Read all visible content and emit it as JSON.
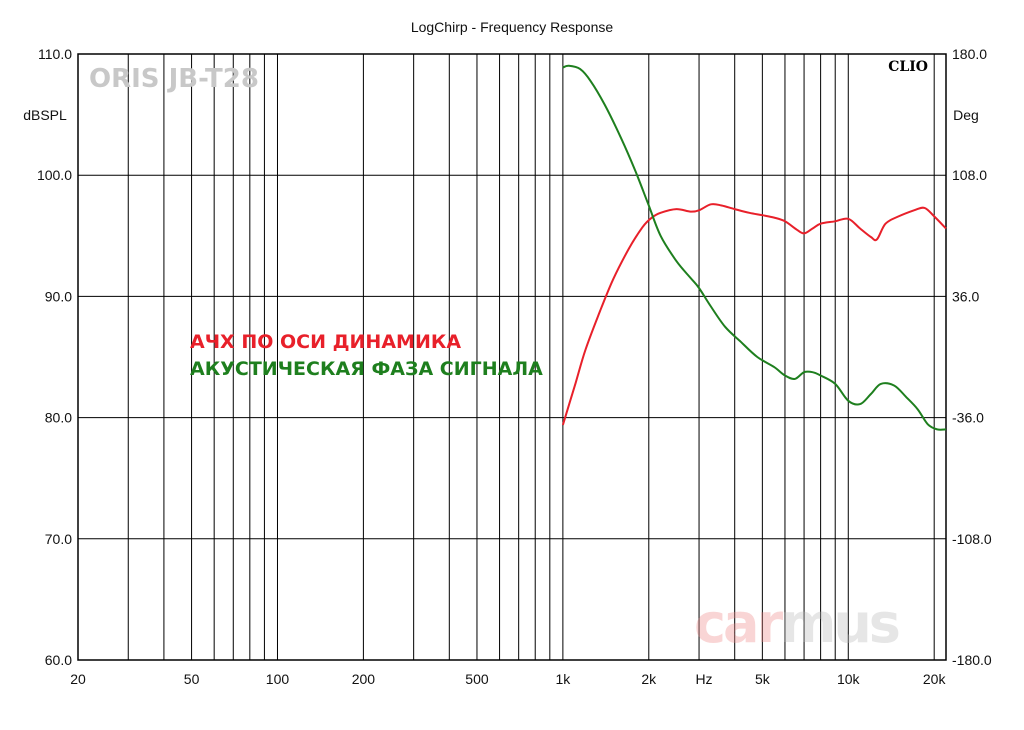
{
  "chart_data": {
    "type": "line",
    "title": "LogChirp - Frequency Response",
    "watermark_left": "ORIS JB-T28",
    "brand_right": "CLIO",
    "logo": "carmus",
    "xlabel": "Hz",
    "ylabel_left": "dBSPL",
    "ylabel_right": "Deg",
    "x_scale": "log",
    "xlim": [
      20,
      22000
    ],
    "ylim_left": [
      60,
      110
    ],
    "ylim_right": [
      -180,
      180
    ],
    "grid": true,
    "x_ticks": [
      {
        "value": 20,
        "label": "20"
      },
      {
        "value": 50,
        "label": "50"
      },
      {
        "value": 100,
        "label": "100"
      },
      {
        "value": 200,
        "label": "200"
      },
      {
        "value": 500,
        "label": "500"
      },
      {
        "value": 1000,
        "label": "1k"
      },
      {
        "value": 2000,
        "label": "2k"
      },
      {
        "value": 5000,
        "label": "5k"
      },
      {
        "value": 10000,
        "label": "10k"
      },
      {
        "value": 20000,
        "label": "20k"
      }
    ],
    "y_ticks_left": [
      "110.0",
      "100.0",
      "90.0",
      "80.0",
      "70.0",
      "60.0"
    ],
    "y_ticks_right": [
      "180.0",
      "108.0",
      "36.0",
      "-36.0",
      "-108.0",
      "-180.0"
    ],
    "legend": [
      "АЧХ ПО ОСИ ДИНАМИКА",
      "АКУСТИЧЕСКАЯ ФАЗА СИГНАЛА"
    ],
    "series": [
      {
        "color": "#e8202a",
        "axis": "left",
        "x": [
          1000,
          1100,
          1200,
          1350,
          1500,
          1700,
          1900,
          2050,
          2200,
          2500,
          2800,
          3000,
          3300,
          3600,
          4000,
          4500,
          5000,
          5500,
          6000,
          6600,
          7000,
          7500,
          8000,
          9000,
          10000,
          11000,
          12000,
          12600,
          13500,
          15000,
          17000,
          18500,
          20000,
          22000
        ],
        "values": [
          79.4,
          82.6,
          85.6,
          88.8,
          91.4,
          93.9,
          95.7,
          96.5,
          96.9,
          97.2,
          97.0,
          97.1,
          97.6,
          97.5,
          97.2,
          96.9,
          96.7,
          96.5,
          96.2,
          95.5,
          95.2,
          95.6,
          96.0,
          96.2,
          96.4,
          95.6,
          94.9,
          94.7,
          96.0,
          96.6,
          97.1,
          97.3,
          96.6,
          95.6
        ]
      },
      {
        "color": "#1e7f1e",
        "axis": "right",
        "x": [
          1000,
          1050,
          1150,
          1250,
          1400,
          1600,
          1800,
          2000,
          2200,
          2500,
          2800,
          3000,
          3300,
          3700,
          4200,
          4800,
          5500,
          6000,
          6500,
          7000,
          7500,
          8000,
          9000,
          10000,
          11000,
          12000,
          13000,
          14500,
          16000,
          17500,
          19000,
          20500,
          22000
        ],
        "values": [
          172,
          173,
          171,
          164,
          150,
          130,
          110,
          90,
          72,
          57,
          47,
          41,
          30,
          18,
          9,
          0,
          -6,
          -11,
          -13,
          -9,
          -9,
          -11,
          -16,
          -26,
          -28,
          -22,
          -16,
          -17,
          -24,
          -31,
          -40,
          -43,
          -43
        ]
      }
    ]
  }
}
